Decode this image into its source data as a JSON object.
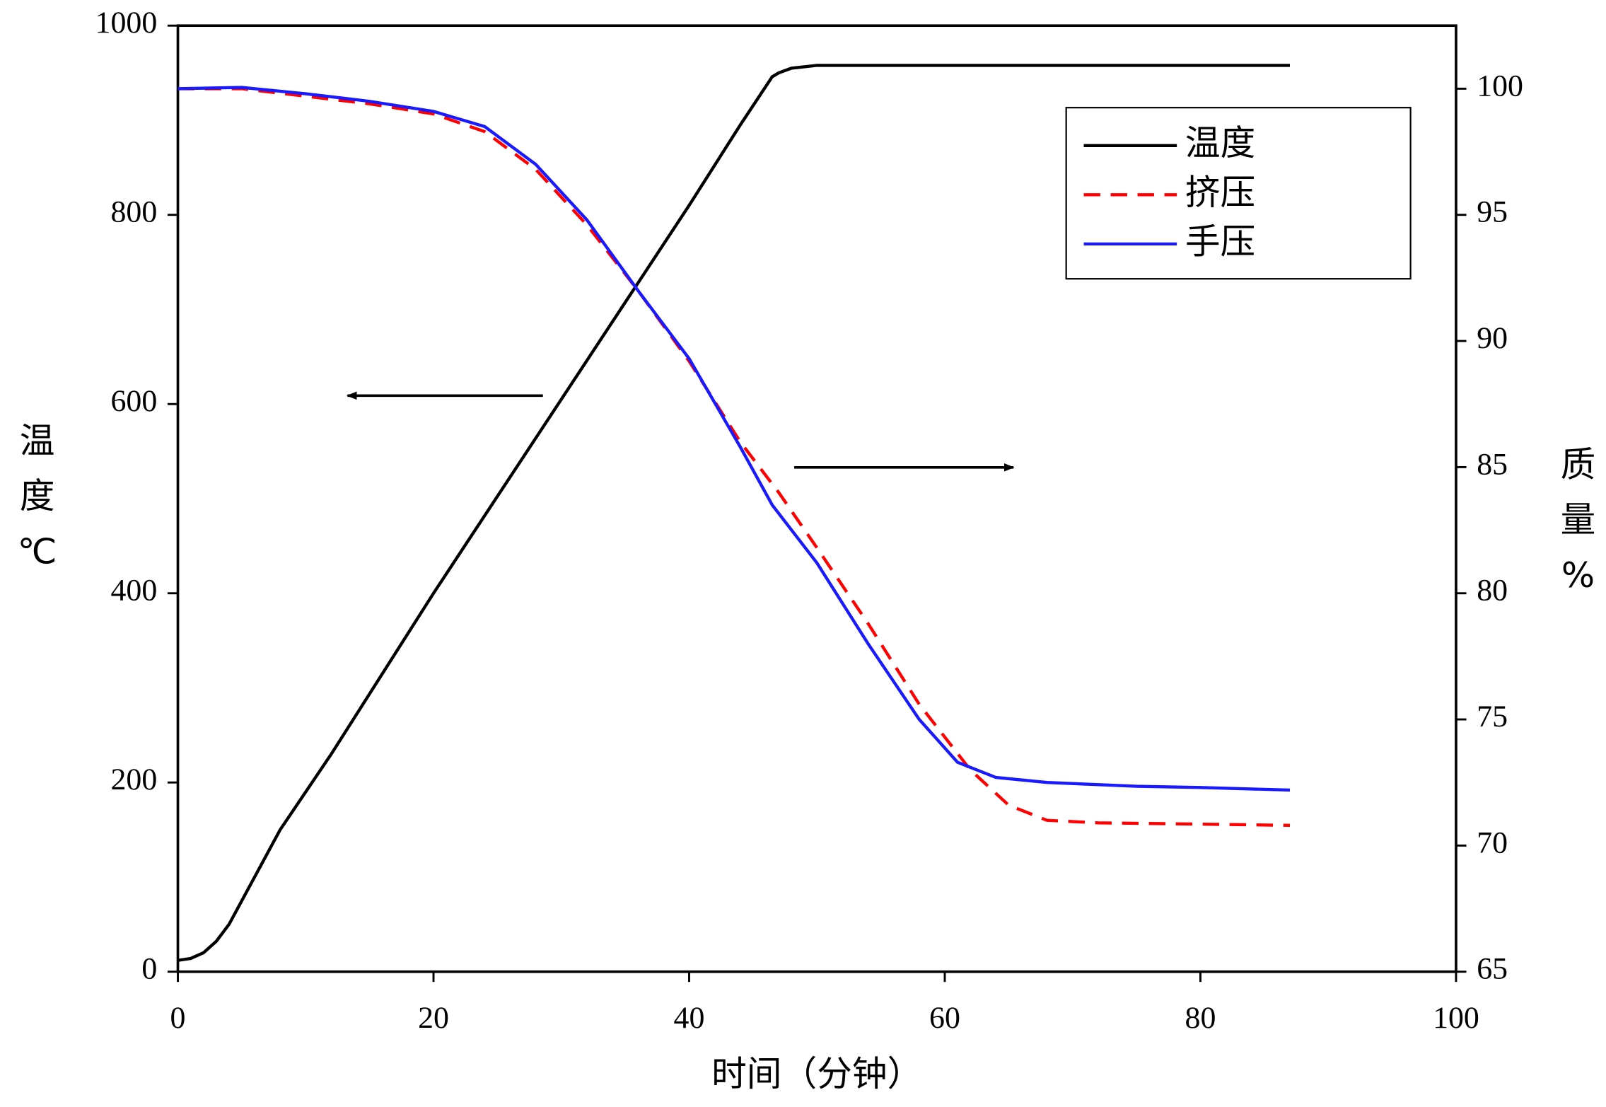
{
  "chart_data": {
    "type": "line",
    "xlabel": "时间（分钟）",
    "ylabel": "温度℃",
    "y2label": "质量%",
    "xlim": [
      0,
      100
    ],
    "xticks": [
      0,
      20,
      40,
      60,
      80,
      100
    ],
    "ylim": [
      0,
      1000
    ],
    "yticks": [
      0,
      200,
      400,
      600,
      800,
      1000
    ],
    "y2lim": [
      65,
      102.5
    ],
    "y2ticks": [
      65,
      70,
      75,
      80,
      85,
      90,
      95,
      100
    ],
    "legend": "upper right",
    "series": [
      {
        "name": "温度",
        "color": "#000000",
        "linestyle": "solid",
        "axis": "y",
        "x": [
          0,
          1,
          2,
          3,
          4,
          6,
          8,
          12,
          20,
          30,
          40,
          44,
          46.5,
          47,
          48,
          50,
          60,
          70,
          87
        ],
        "values": [
          12,
          14,
          20,
          32,
          50,
          100,
          150,
          230,
          400,
          605,
          810,
          895,
          946,
          950,
          955,
          958,
          958,
          958,
          958
        ]
      },
      {
        "name": "挤压",
        "color": "#ff0000",
        "linestyle": "dashed",
        "axis": "y2",
        "x": [
          0,
          5,
          10,
          15,
          20,
          24,
          28,
          32,
          36,
          40,
          44,
          47,
          50,
          54,
          58,
          62,
          65,
          68,
          72,
          80,
          87
        ],
        "values": [
          100,
          100,
          99.7,
          99.4,
          99.0,
          98.3,
          96.8,
          94.6,
          92,
          89.2,
          86.0,
          84.0,
          81.8,
          78.8,
          75.6,
          73.0,
          71.6,
          71.0,
          70.9,
          70.85,
          70.8
        ]
      },
      {
        "name": "手压",
        "color": "#1a1aff",
        "linestyle": "solid",
        "axis": "y2",
        "x": [
          0,
          5,
          10,
          15,
          20,
          24,
          28,
          32,
          36,
          40,
          44,
          46.5,
          50,
          54,
          58,
          61,
          64,
          68,
          75,
          80,
          87
        ],
        "values": [
          100,
          100.05,
          99.8,
          99.5,
          99.1,
          98.5,
          97,
          94.8,
          92,
          89.3,
          85.8,
          83.5,
          81.2,
          78,
          75,
          73.3,
          72.7,
          72.5,
          72.35,
          72.3,
          72.2
        ]
      }
    ]
  }
}
